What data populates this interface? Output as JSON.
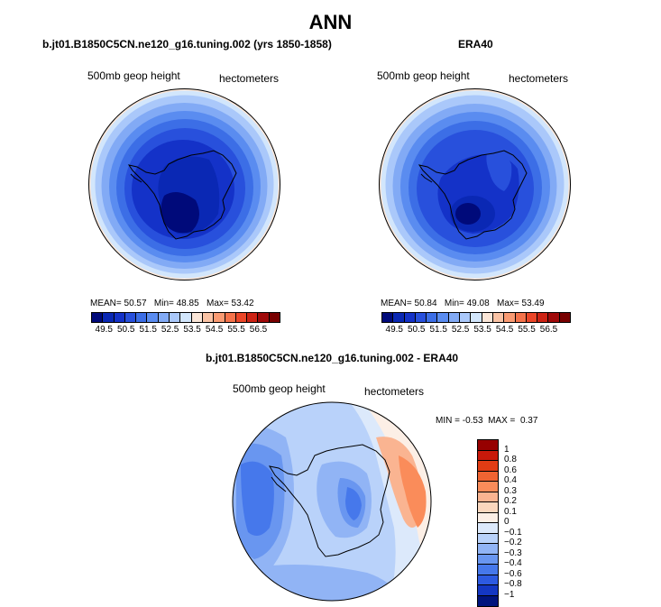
{
  "title": "ANN",
  "panels": {
    "left": {
      "title": "b.jt01.B1850C5CN.ne120_g16.tuning.002 (yrs 1850-1858)",
      "field": "500mb geop height",
      "units": "hectometers",
      "mean_label": "MEAN=",
      "mean": "50.57",
      "min_label": "Min=",
      "min": "48.85",
      "max_label": "Max=",
      "max": "53.42"
    },
    "right": {
      "title": "ERA40",
      "field": "500mb geop height",
      "units": "hectometers",
      "mean_label": "MEAN=",
      "mean": "50.84",
      "min_label": "Min=",
      "min": "49.08",
      "max_label": "Max=",
      "max": "53.49"
    },
    "diff": {
      "title": "b.jt01.B1850C5CN.ne120_g16.tuning.002 - ERA40",
      "field": "500mb geop height",
      "units": "hectometers",
      "min_label": "MIN =",
      "min": "-0.53",
      "max_label": "MAX =",
      "max": "0.37"
    }
  },
  "colorbar_top": {
    "colors": [
      "#000a7a",
      "#0a28b4",
      "#1432c8",
      "#2850dc",
      "#3c6ee6",
      "#5a8cf0",
      "#82aaf5",
      "#aac8fa",
      "#d2e6fc",
      "#fae6d8",
      "#fac3a5",
      "#fa9b73",
      "#f5734b",
      "#eb4628",
      "#cd2314",
      "#a00a0a",
      "#780000"
    ],
    "ticks": [
      "49.5",
      "50",
      "50.5",
      "51",
      "51.5",
      "52",
      "52.5",
      "53",
      "53.5",
      "54",
      "54.5",
      "55",
      "55.5",
      "56",
      "56.5"
    ]
  },
  "colorbar_diff": {
    "colors": [
      "#960000",
      "#c8190a",
      "#e13c14",
      "#f06432",
      "#fa8c5a",
      "#fab491",
      "#fad7be",
      "#fcefe6",
      "#dce9fb",
      "#b9d2fa",
      "#91b4f5",
      "#6996f0",
      "#4678eb",
      "#2d5ae1",
      "#1437c3",
      "#00147d"
    ],
    "ticks": [
      "1",
      "0.8",
      "0.6",
      "0.4",
      "0.3",
      "0.2",
      "0.1",
      "0",
      "−0.1",
      "−0.2",
      "−0.3",
      "−0.4",
      "−0.6",
      "−0.8",
      "−1"
    ]
  },
  "map_levels": {
    "model": [
      54,
      53.5,
      53,
      52.5,
      52,
      51.5,
      51,
      50.5,
      50,
      49.5,
      49
    ],
    "obs": [
      54,
      53.5,
      53,
      52.5,
      52,
      51.5,
      51,
      50.5,
      50,
      49.5,
      49.5
    ]
  }
}
